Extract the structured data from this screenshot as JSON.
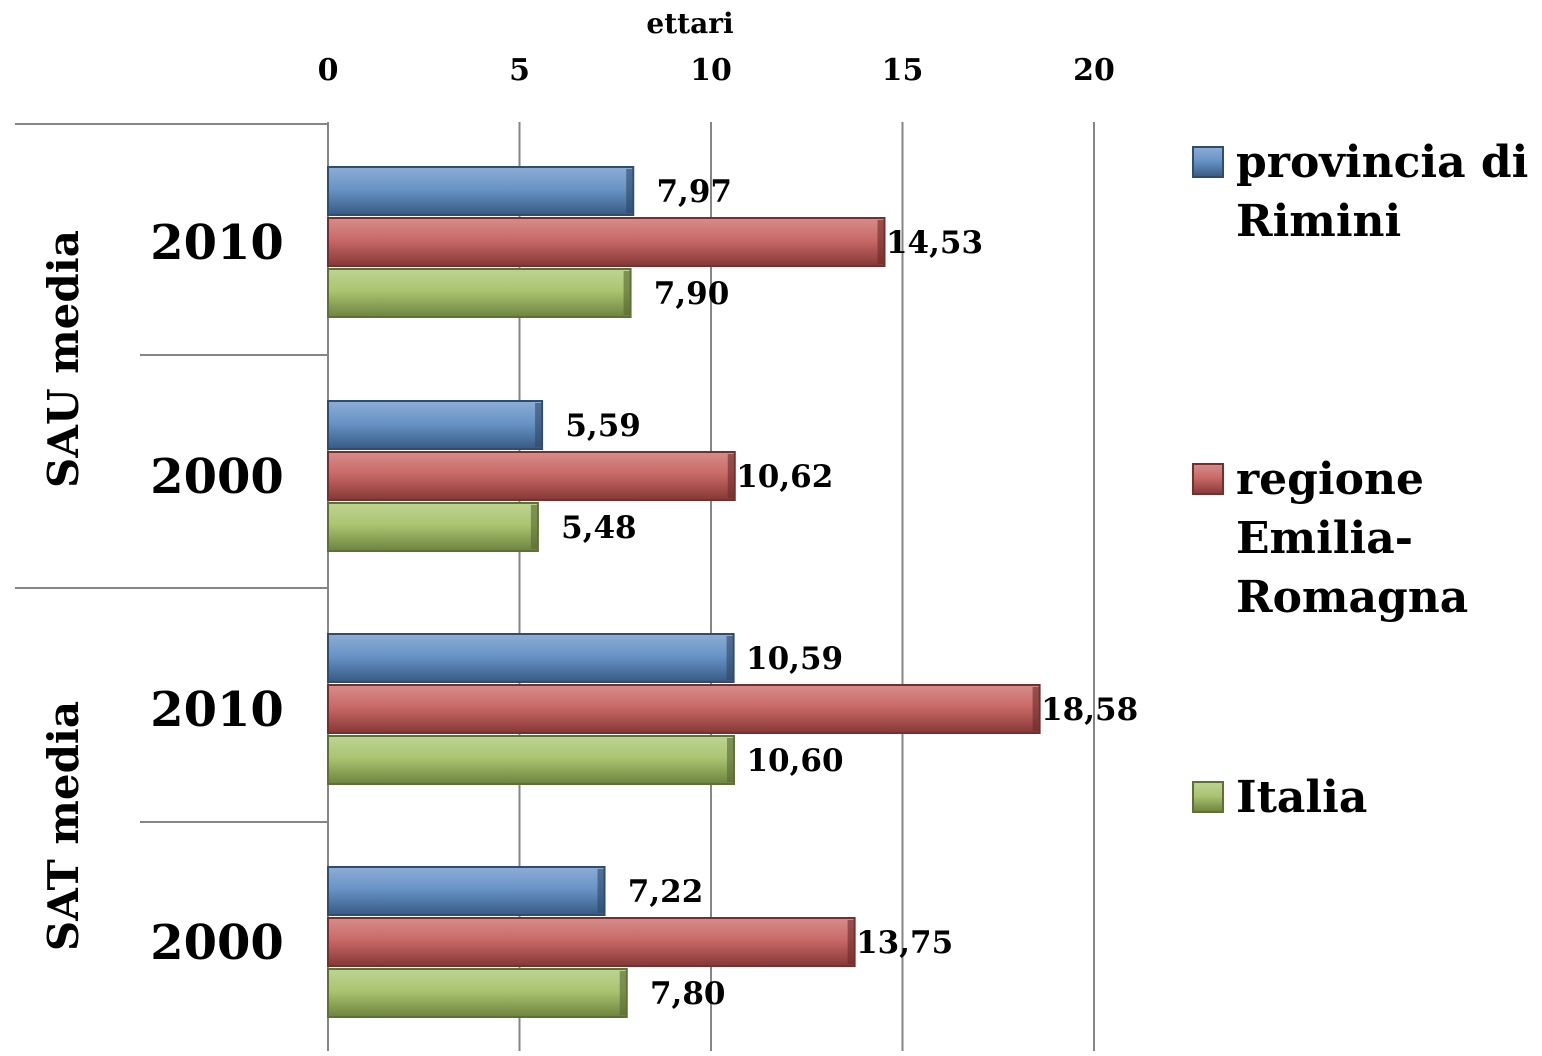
{
  "chart_data": {
    "type": "bar",
    "orientation": "horizontal",
    "xlabel": "ettari",
    "xlim": [
      0,
      20
    ],
    "x_ticks": [
      "0",
      "5",
      "10",
      "15",
      "20"
    ],
    "grid": "vertical",
    "legend_position": "right",
    "groups": [
      {
        "label": "SAU media",
        "categories": [
          {
            "label": "2010",
            "values": [
              7.97,
              14.53,
              7.9
            ],
            "value_labels": [
              "7,97",
              "14,53",
              "7,90"
            ]
          },
          {
            "label": "2000",
            "values": [
              5.59,
              10.62,
              5.48
            ],
            "value_labels": [
              "5,59",
              "10,62",
              "5,48"
            ]
          }
        ]
      },
      {
        "label": "SAT media",
        "categories": [
          {
            "label": "2010",
            "values": [
              10.59,
              18.58,
              10.6
            ],
            "value_labels": [
              "10,59",
              "18,58",
              "10,60"
            ]
          },
          {
            "label": "2000",
            "values": [
              7.22,
              13.75,
              7.8
            ],
            "value_labels": [
              "7,22",
              "13,75",
              "7,80"
            ]
          }
        ]
      }
    ],
    "series": [
      {
        "name_lines": [
          "provincia di",
          "Rimini"
        ],
        "color": "#4F81BD"
      },
      {
        "name_lines": [
          "regione",
          "Emilia-",
          "Romagna"
        ],
        "color": "#C0504D"
      },
      {
        "name_lines": [
          "Italia"
        ],
        "color": "#9BBB59"
      }
    ]
  }
}
